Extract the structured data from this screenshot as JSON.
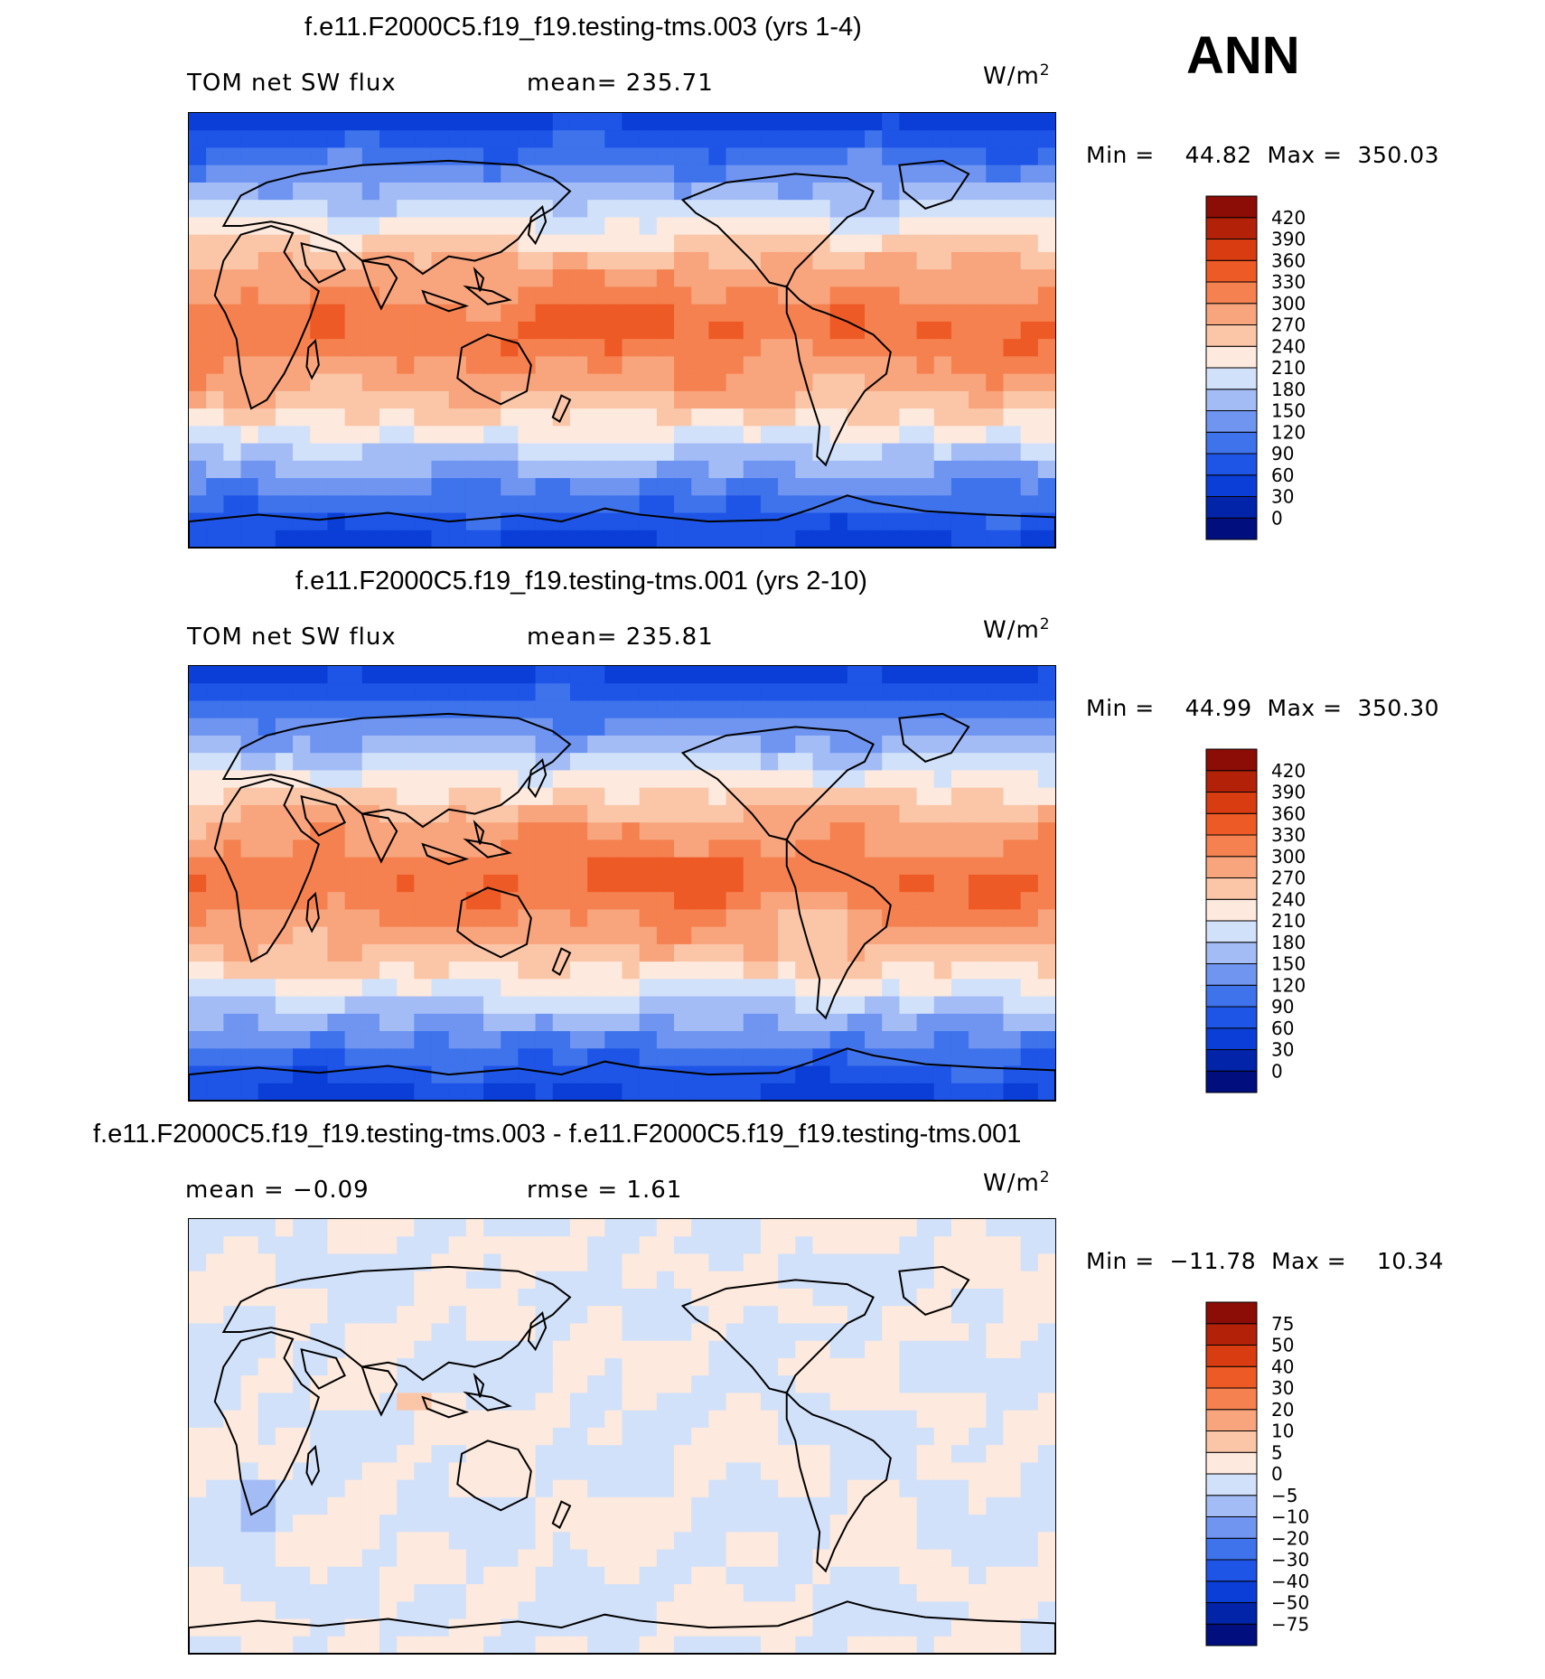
{
  "season": "ANN",
  "units_text": "W/m",
  "units_sup": "2",
  "panels": [
    {
      "title": "f.e11.F2000C5.f19_f19.testing-tms.003 (yrs 1-4)",
      "left_label": "TOM net SW flux",
      "center_label": "mean= 235.71",
      "min_label": "Min =",
      "min_value": "44.82",
      "max_label": "Max =",
      "max_value": "350.03"
    },
    {
      "title": "f.e11.F2000C5.f19_f19.testing-tms.001 (yrs 2-10)",
      "left_label": "TOM net SW flux",
      "center_label": "mean= 235.81",
      "min_label": "Min =",
      "min_value": "44.99",
      "max_label": "Max =",
      "max_value": "350.30"
    },
    {
      "title": "f.e11.F2000C5.f19_f19.testing-tms.003 - f.e11.F2000C5.f19_f19.testing-tms.001",
      "left_label": "mean =   −0.09",
      "center_label": "rmse =    1.61",
      "min_label": "Min =",
      "min_value": "−11.78",
      "max_label": "Max =",
      "max_value": "10.34"
    }
  ],
  "chart_data": [
    {
      "type": "heatmap",
      "title": "f.e11.F2000C5.f19_f19.testing-tms.003 (yrs 1-4)",
      "variable": "TOM net SW flux",
      "units": "W/m2",
      "mean": 235.71,
      "min": 44.82,
      "max": 350.03,
      "colorbar_levels": [
        0,
        30,
        60,
        90,
        120,
        150,
        180,
        210,
        240,
        270,
        300,
        330,
        360,
        390,
        420
      ],
      "colorbar_colors": [
        "#000e7e",
        "#0124a8",
        "#0a3ed6",
        "#1e55e6",
        "#3f73ec",
        "#6f95f1",
        "#a3bcf6",
        "#d2e1fa",
        "#fde9dd",
        "#fbc6a8",
        "#f8a47d",
        "#f4814f",
        "#ee5a25",
        "#d83c10",
        "#b32208",
        "#8c0c06"
      ],
      "lat_band_profile_values": [
        40,
        70,
        100,
        130,
        165,
        200,
        235,
        265,
        290,
        300,
        320,
        320,
        300,
        285,
        260,
        230,
        195,
        160,
        125,
        95,
        70,
        50
      ]
    },
    {
      "type": "heatmap",
      "title": "f.e11.F2000C5.f19_f19.testing-tms.001 (yrs 2-10)",
      "variable": "TOM net SW flux",
      "units": "W/m2",
      "mean": 235.81,
      "min": 44.99,
      "max": 350.3,
      "colorbar_levels": [
        0,
        30,
        60,
        90,
        120,
        150,
        180,
        210,
        240,
        270,
        300,
        330,
        360,
        390,
        420
      ],
      "colorbar_colors": [
        "#000e7e",
        "#0124a8",
        "#0a3ed6",
        "#1e55e6",
        "#3f73ec",
        "#6f95f1",
        "#a3bcf6",
        "#d2e1fa",
        "#fde9dd",
        "#fbc6a8",
        "#f8a47d",
        "#f4814f",
        "#ee5a25",
        "#d83c10",
        "#b32208",
        "#8c0c06"
      ],
      "lat_band_profile_values": [
        40,
        70,
        100,
        130,
        165,
        200,
        235,
        265,
        290,
        300,
        320,
        320,
        300,
        285,
        260,
        230,
        195,
        160,
        125,
        95,
        70,
        50
      ]
    },
    {
      "type": "heatmap",
      "title": "f.e11.F2000C5.f19_f19.testing-tms.003 - f.e11.F2000C5.f19_f19.testing-tms.001",
      "units": "W/m2",
      "mean": -0.09,
      "rmse": 1.61,
      "min": -11.78,
      "max": 10.34,
      "colorbar_levels": [
        -75,
        -50,
        -40,
        -30,
        -20,
        -10,
        -5,
        0,
        5,
        10,
        20,
        30,
        40,
        50,
        75
      ],
      "colorbar_labels": [
        "−75",
        "−50",
        "−40",
        "−30",
        "−20",
        "−10",
        "−5",
        "0",
        "5",
        "10",
        "20",
        "30",
        "40",
        "50",
        "75"
      ],
      "colorbar_colors": [
        "#000e7e",
        "#0124a8",
        "#0a3ed6",
        "#1e55e6",
        "#3f73ec",
        "#6f95f1",
        "#a3bcf6",
        "#d2e1fa",
        "#fde9dd",
        "#fbc6a8",
        "#f8a47d",
        "#f4814f",
        "#ee5a25",
        "#d83c10",
        "#b32208",
        "#8c0c06"
      ]
    }
  ]
}
